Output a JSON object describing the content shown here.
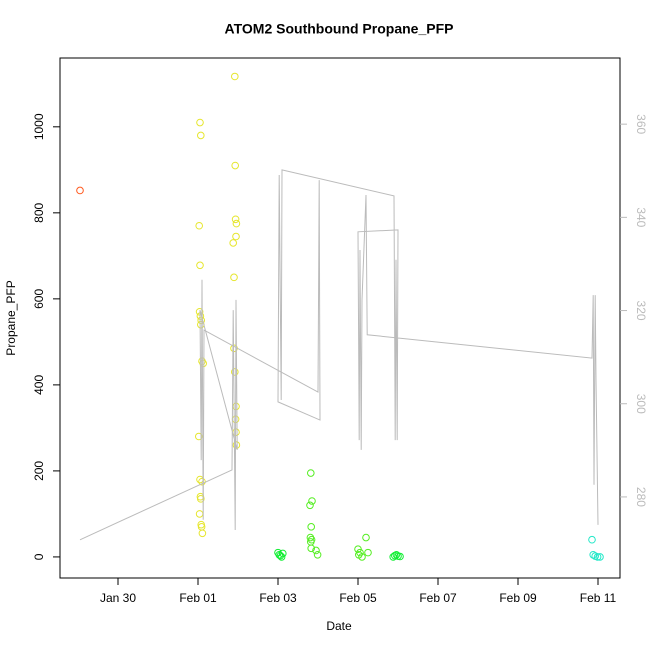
{
  "chart_data": {
    "type": "scatter",
    "title": "ATOM2 Southbound Propane_PFP",
    "x_label": "Date",
    "y_label": "Propane_PFP",
    "xlim": [
      28.55,
      42.55
    ],
    "xticks": [
      {
        "value": 30,
        "label": "Jan 30"
      },
      {
        "value": 32,
        "label": "Feb 01"
      },
      {
        "value": 34,
        "label": "Feb 03"
      },
      {
        "value": 36,
        "label": "Feb 05"
      },
      {
        "value": 38,
        "label": "Feb 07"
      },
      {
        "value": 40,
        "label": "Feb 09"
      },
      {
        "value": 42,
        "label": "Feb 11"
      }
    ],
    "ylim": [
      -49,
      1160
    ],
    "yticks": [
      0,
      200,
      400,
      600,
      800,
      1000
    ],
    "y2lim": [
      262.6,
      374.2
    ],
    "y2ticks": [
      280,
      300,
      320,
      340,
      360
    ],
    "y2_color": "#bbbbbb",
    "series": [
      {
        "color": "#ff5a1f",
        "x": [
          29.05
        ],
        "values": [
          852
        ]
      },
      {
        "color": "#e6e62e",
        "x": [
          32.05,
          32.07,
          32.03,
          32.05,
          32.04,
          32.06,
          32.08,
          32.07,
          32.1,
          32.13,
          32.02,
          32.05,
          32.1,
          32.06,
          32.07,
          32.04,
          32.08,
          32.09,
          32.11,
          32.92,
          32.93,
          32.94,
          32.96,
          32.95,
          32.88,
          32.9,
          32.9,
          32.92,
          32.94,
          32.95,
          32.96,
          32.95
        ],
        "values": [
          1010,
          980,
          770,
          678,
          570,
          560,
          550,
          540,
          455,
          450,
          280,
          180,
          175,
          140,
          135,
          100,
          75,
          70,
          55,
          1117,
          910,
          785,
          775,
          745,
          730,
          650,
          485,
          430,
          320,
          290,
          260,
          350
        ]
      },
      {
        "color": "#55ee22",
        "x": [
          34.82,
          34.85,
          34.8,
          34.83,
          34.81,
          34.84,
          34.82,
          34.83,
          34.95,
          34.99,
          36.0,
          36.05,
          36.02,
          36.1,
          36.2,
          36.25
        ],
        "values": [
          195,
          130,
          120,
          70,
          45,
          40,
          35,
          20,
          15,
          5,
          18,
          10,
          5,
          0,
          45,
          10
        ]
      },
      {
        "color": "#11ee33",
        "x": [
          34.0,
          34.03,
          34.06,
          34.09,
          34.12,
          36.88,
          36.92,
          36.96,
          37.0,
          37.05
        ],
        "values": [
          10,
          5,
          3,
          0,
          8,
          0,
          3,
          5,
          2,
          1
        ]
      },
      {
        "color": "#22e8c8",
        "x": [
          41.85,
          41.88,
          41.93,
          41.99,
          42.05
        ],
        "values": [
          40,
          5,
          2,
          0,
          0
        ]
      },
      {
        "type": "line",
        "axis": "y2",
        "color": "#bbbbbb",
        "x": [
          29.05,
          32.85,
          32.88,
          32.93,
          32.95,
          32.98,
          32.05,
          32.08,
          32.1,
          32.13,
          32.15,
          35.0,
          35.03,
          35.05,
          34.0,
          34.03,
          34.08,
          34.1,
          36.9,
          36.93,
          36.95,
          36.98,
          37.0,
          36.0,
          36.03,
          36.05,
          36.08,
          36.1,
          36.2,
          36.23,
          41.85,
          41.88,
          41.9,
          41.93,
          41.95,
          42.0
        ],
        "values": [
          270.8,
          285.8,
          320.1,
          272.9,
          322.3,
          290.1,
          320.1,
          287.9,
          326.6,
          275.1,
          315.8,
          302.5,
          348.0,
          296.5,
          300.4,
          349.1,
          300.8,
          350.2,
          344.6,
          292.2,
          330.9,
          292.2,
          337.3,
          336.9,
          292.2,
          333.0,
          290.1,
          322.3,
          344.8,
          314.8,
          309.8,
          323.3,
          282.6,
          323.3,
          305.1,
          274.0
        ]
      }
    ]
  }
}
